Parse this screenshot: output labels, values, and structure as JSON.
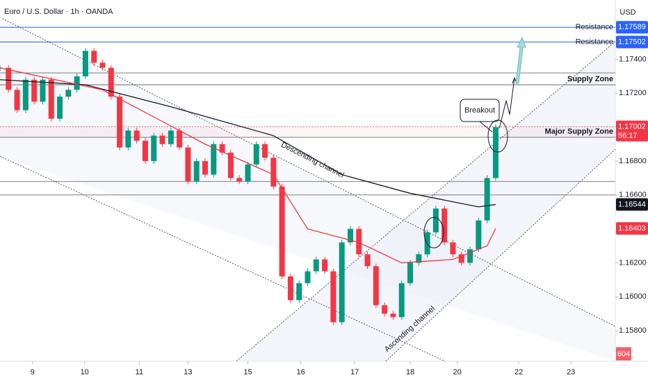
{
  "chart_data": {
    "type": "candlestick",
    "title": "Euro / U.S. Dollar · 1h · OANDA",
    "currency": "USD",
    "xlim": [
      0,
      72
    ],
    "ylim": [
      1.1562,
      1.1775
    ],
    "xticks": [
      {
        "value": 3.8,
        "label": "9"
      },
      {
        "value": 9.9,
        "label": "10"
      },
      {
        "value": 16.3,
        "label": "11"
      },
      {
        "value": 22,
        "label": "13"
      },
      {
        "value": 29,
        "label": "15"
      },
      {
        "value": 35.2,
        "label": "16"
      },
      {
        "value": 41.5,
        "label": "17"
      },
      {
        "value": 48,
        "label": "18"
      },
      {
        "value": 53.5,
        "label": "20"
      },
      {
        "value": 60.7,
        "label": "22"
      },
      {
        "value": 66.8,
        "label": "23"
      }
    ],
    "yticks": [
      {
        "value": 1.174,
        "label": "1.17400"
      },
      {
        "value": 1.172,
        "label": "1.17200"
      },
      {
        "value": 1.168,
        "label": "1.16800"
      },
      {
        "value": 1.166,
        "label": "1.16600"
      },
      {
        "value": 1.162,
        "label": "1.16200"
      },
      {
        "value": 1.16,
        "label": "1.16000"
      },
      {
        "value": 1.158,
        "label": "1.15800"
      }
    ],
    "up_color": "#089981",
    "down_color": "#f23645",
    "close": [
      1.1735,
      1.1722,
      1.171,
      1.1728,
      1.1715,
      1.1728,
      1.1705,
      1.1718,
      1.1722,
      1.173,
      1.1745,
      1.1738,
      1.1735,
      1.1718,
      1.1688,
      1.1698,
      1.1692,
      1.168,
      1.1695,
      1.169,
      1.1698,
      1.1688,
      1.1668,
      1.168,
      1.1672,
      1.169,
      1.1685,
      1.167,
      1.1668,
      1.1678,
      1.169,
      1.1682,
      1.1665,
      1.1612,
      1.1598,
      1.1608,
      1.1615,
      1.1622,
      1.1615,
      1.1585,
      1.1632,
      1.164,
      1.1625,
      1.1618,
      1.1595,
      1.159,
      1.1588,
      1.1608,
      1.162,
      1.1625,
      1.1638,
      1.1652,
      1.1632,
      1.1625,
      1.162,
      1.1628,
      1.1645,
      1.167,
      1.17
    ],
    "moving_averages": [
      {
        "color": "#131722",
        "x": [
          0,
          10,
          20,
          32,
          40,
          48,
          56,
          58
        ],
        "values": [
          1.1728,
          1.1725,
          1.1712,
          1.1695,
          1.1672,
          1.1661,
          1.1653,
          1.16544
        ],
        "value_label": "1.16544"
      },
      {
        "color": "#f23645",
        "x": [
          0,
          12,
          24,
          32,
          36,
          42,
          47,
          53,
          57,
          58
        ],
        "values": [
          1.1735,
          1.1722,
          1.169,
          1.1672,
          1.164,
          1.1632,
          1.162,
          1.1622,
          1.163,
          1.16403
        ],
        "value_label": "1.16403"
      }
    ],
    "levels": [
      {
        "name": "Resistance",
        "value": 1.17589,
        "label": "1.17589",
        "color": "#2962ff"
      },
      {
        "name": "Resistance",
        "value": 1.17502,
        "label": "1.17502",
        "color": "#2962ff"
      }
    ],
    "zones": [
      {
        "name": "Supply Zone",
        "range": [
          1.1725,
          1.1732
        ]
      },
      {
        "name": "Major Supply Zone",
        "range": [
          1.1694,
          1.17002
        ]
      }
    ],
    "lines": [
      1.1668,
      1.166
    ],
    "last_price": {
      "value": 1.17002,
      "label": "1.17002",
      "countdown": "56:17",
      "color": "#f23645"
    },
    "annotations": [
      "Descending channel",
      "Ascending channel",
      "Breakout"
    ],
    "volume_label": "604"
  }
}
